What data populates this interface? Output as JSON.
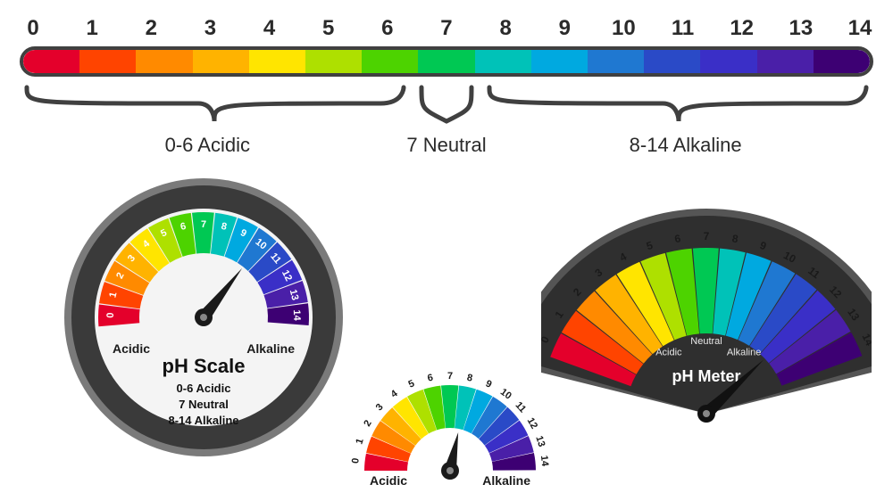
{
  "scale": {
    "ticks": [
      "0",
      "1",
      "2",
      "3",
      "4",
      "5",
      "6",
      "7",
      "8",
      "9",
      "10",
      "11",
      "12",
      "13",
      "14"
    ],
    "colors": [
      "#e4002b",
      "#ff4400",
      "#ff8a00",
      "#ffb300",
      "#ffe500",
      "#aee000",
      "#4dd300",
      "#00c853",
      "#00c2b8",
      "#00a9e0",
      "#1f78d1",
      "#2a4ac7",
      "#3a2fc7",
      "#4a1fa8",
      "#3d0073"
    ],
    "border_color": "#404040",
    "tick_font_size": 24,
    "tick_color": "#2a2a2a"
  },
  "ranges": {
    "acidic": {
      "label": "0-6 Acidic"
    },
    "neutral": {
      "label": "7 Neutral"
    },
    "alkaline": {
      "label": "8-14 Alkaline"
    },
    "font_size": 22,
    "color": "#2a2a2a",
    "brace_color": "#404040"
  },
  "gauge_round": {
    "title": "pH Scale",
    "lines": [
      "0-6 Acidic",
      "7 Neutral",
      "8-14 Alkaline"
    ],
    "label_left": "Acidic",
    "label_right": "Alkaline",
    "needle_value": 10,
    "ring_dark": "#3a3a3a",
    "ring_light": "#7a7a7a",
    "face": "#f4f4f4"
  },
  "gauge_arc": {
    "label_left": "Acidic",
    "label_right": "Alkaline",
    "needle_value": 8
  },
  "gauge_fan": {
    "title": "pH Meter",
    "label_left": "Acidic",
    "label_mid": "Neutral",
    "label_right": "Alkaline",
    "needle_value": 12,
    "bg_dark": "#2f2f2f",
    "bg_light": "#555555"
  }
}
